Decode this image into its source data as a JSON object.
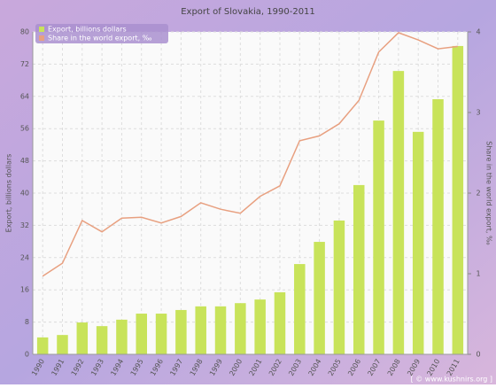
{
  "chart_data": {
    "type": "bar-line",
    "title": "Export of Slovakia, 1990-2011",
    "ylabel": "Export, billions dollars",
    "y2label": "Share in the world export, ‰",
    "credit": "[ © www.kushnirs.org ]",
    "categories": [
      "1990",
      "1991",
      "1992",
      "1993",
      "1994",
      "1995",
      "1996",
      "1997",
      "1998",
      "1999",
      "2000",
      "2001",
      "2002",
      "2003",
      "2004",
      "2005",
      "2006",
      "2007",
      "2008",
      "2009",
      "2010",
      "2011"
    ],
    "series": [
      {
        "name": "Export, billions dollars",
        "type": "bar",
        "color": "#c8e35a",
        "axis": "y",
        "values": [
          4.2,
          4.8,
          7.9,
          7.0,
          8.6,
          10.1,
          10.1,
          11.0,
          11.9,
          11.9,
          12.7,
          13.6,
          15.4,
          22.4,
          27.9,
          33.2,
          42.0,
          58.0,
          70.3,
          55.2,
          63.3,
          76.5
        ]
      },
      {
        "name": "Share in the world export, ‰",
        "type": "line",
        "color": "#e8a080",
        "axis": "y2",
        "values": [
          0.97,
          1.13,
          1.66,
          1.52,
          1.69,
          1.7,
          1.63,
          1.71,
          1.88,
          1.8,
          1.75,
          1.96,
          2.09,
          2.65,
          2.71,
          2.86,
          3.15,
          3.75,
          3.99,
          3.9,
          3.79,
          3.82
        ]
      }
    ],
    "ylim": [
      0,
      80
    ],
    "yticks": [
      0,
      8,
      16,
      24,
      32,
      40,
      48,
      56,
      64,
      72,
      80
    ],
    "y2lim": [
      0,
      4
    ],
    "y2ticks": [
      0,
      1,
      2,
      3,
      4
    ],
    "grid": true,
    "legend": "top-left"
  }
}
